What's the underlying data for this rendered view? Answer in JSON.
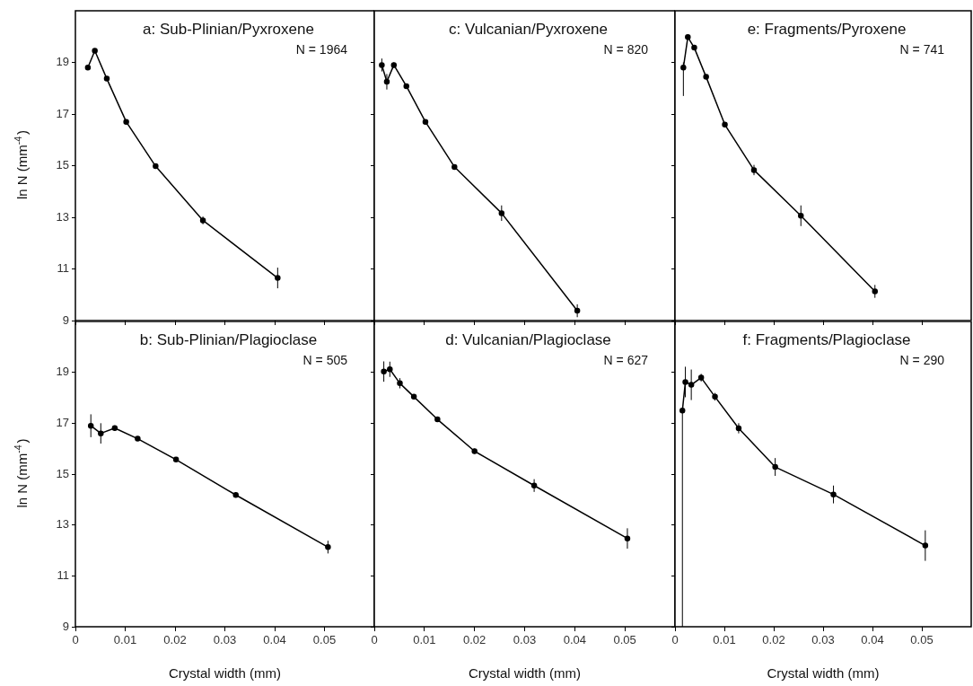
{
  "chart_data": [
    {
      "type": "line",
      "title": "a: Sub-Plinian/Pyxroxene",
      "ylabel": "ln N (mm$^{-4}$)",
      "annotations": [
        "N = 1964"
      ],
      "color": "#000000",
      "marker": "circle",
      "x": [
        0.0025,
        0.0039,
        0.0063,
        0.0102,
        0.0161,
        0.0256,
        0.0406
      ],
      "values": [
        18.8,
        19.45,
        18.37,
        16.7,
        14.98,
        12.88,
        10.65
      ],
      "errors": [
        null,
        null,
        null,
        null,
        null,
        0.15,
        0.4
      ],
      "xlim": [
        0,
        0.06
      ],
      "ylim": [
        9,
        21
      ],
      "xticks": [
        0,
        0.01,
        0.02,
        0.03,
        0.04,
        0.05
      ],
      "yticks": [
        9,
        11,
        13,
        15,
        17,
        19
      ],
      "tick_labels": "y"
    },
    {
      "type": "line",
      "title": "b: Sub-Plinian/Plagioclase",
      "xlabel": "Crystal width (mm)",
      "ylabel": "ln N (mm$^{-4}$)",
      "annotations": [
        "N = 505"
      ],
      "color": "#000000",
      "marker": "circle",
      "x": [
        0.0031,
        0.0051,
        0.0079,
        0.0125,
        0.0202,
        0.0322,
        0.0507
      ],
      "values": [
        16.9,
        16.6,
        16.81,
        16.39,
        15.57,
        14.18,
        12.13
      ],
      "errors": [
        0.45,
        0.4,
        0.1,
        null,
        null,
        0.1,
        0.25
      ],
      "xlim": [
        0,
        0.06
      ],
      "ylim": [
        9,
        21
      ],
      "xticks": [
        0,
        0.01,
        0.02,
        0.03,
        0.04,
        0.05
      ],
      "yticks": [
        9,
        11,
        13,
        15,
        17,
        19
      ]
    },
    {
      "type": "line",
      "title": "c: Vulcanian/Pyxroxene",
      "annotations": [
        "N = 820"
      ],
      "color": "#000000",
      "marker": "circle",
      "x": [
        0.0015,
        0.0025,
        0.0039,
        0.0064,
        0.0102,
        0.016,
        0.0254,
        0.0405
      ],
      "values": [
        18.9,
        18.25,
        18.9,
        18.08,
        16.7,
        14.95,
        13.16,
        9.38
      ],
      "errors": [
        0.25,
        0.3,
        0.1,
        null,
        null,
        0.1,
        0.3,
        0.25
      ],
      "xlim": [
        0,
        0.06
      ],
      "ylim": [
        9,
        21
      ],
      "xticks": [
        0,
        0.01,
        0.02,
        0.03,
        0.04,
        0.05
      ],
      "yticks": [
        9,
        11,
        13,
        15,
        17,
        19
      ],
      "tick_labels": false
    },
    {
      "type": "line",
      "title": "d: Vulcanian/Plagioclase",
      "xlabel": "Crystal width (mm)",
      "annotations": [
        "N = 627"
      ],
      "color": "#000000",
      "marker": "circle",
      "x": [
        0.0019,
        0.0031,
        0.0051,
        0.0079,
        0.0126,
        0.02,
        0.0319,
        0.0505
      ],
      "values": [
        19.03,
        19.12,
        18.57,
        18.04,
        17.15,
        15.9,
        14.55,
        12.47
      ],
      "errors": [
        0.4,
        0.3,
        0.2,
        null,
        0.1,
        0.1,
        0.25,
        0.4
      ],
      "xlim": [
        0,
        0.06
      ],
      "ylim": [
        9,
        21
      ],
      "xticks": [
        0,
        0.01,
        0.02,
        0.03,
        0.04,
        0.05
      ],
      "yticks": [
        9,
        11,
        13,
        15,
        17,
        19
      ],
      "tick_labels": "x"
    },
    {
      "type": "line",
      "title": "e: Fragments/Pyroxene",
      "annotations": [
        "N = 741"
      ],
      "color": "#000000",
      "marker": "circle",
      "x": [
        0.0017,
        0.0026,
        0.0039,
        0.0063,
        0.0101,
        0.016,
        0.0255,
        0.0405
      ],
      "values": [
        18.8,
        19.98,
        19.57,
        18.44,
        16.59,
        14.83,
        13.06,
        10.13
      ],
      "errors": [
        [
          17.7,
          19.0
        ],
        null,
        null,
        null,
        null,
        0.2,
        0.4,
        0.25
      ],
      "xlim": [
        0,
        0.06
      ],
      "ylim": [
        9,
        21
      ],
      "xticks": [
        0,
        0.01,
        0.02,
        0.03,
        0.04,
        0.05
      ],
      "yticks": [
        9,
        11,
        13,
        15,
        17,
        19
      ],
      "tick_labels": false
    },
    {
      "type": "line",
      "title": "f: Fragments/Plagioclase",
      "xlabel": "Crystal width (mm)",
      "annotations": [
        "N = 290"
      ],
      "color": "#000000",
      "marker": "circle",
      "x": [
        0.0015,
        0.0021,
        0.0033,
        0.0053,
        0.0081,
        0.0129,
        0.0203,
        0.0321,
        0.0507
      ],
      "values": [
        17.5,
        18.62,
        18.51,
        18.79,
        18.04,
        16.8,
        15.28,
        14.2,
        12.19
      ],
      "errors": [
        [
          9,
          17.6
        ],
        0.6,
        0.6,
        0.15,
        0.15,
        0.2,
        0.35,
        0.35,
        0.6
      ],
      "xlim": [
        0,
        0.06
      ],
      "ylim": [
        9,
        21
      ],
      "xticks": [
        0,
        0.01,
        0.02,
        0.03,
        0.04,
        0.05
      ],
      "yticks": [
        9,
        11,
        13,
        15,
        17,
        19
      ],
      "tick_labels": "x"
    }
  ]
}
